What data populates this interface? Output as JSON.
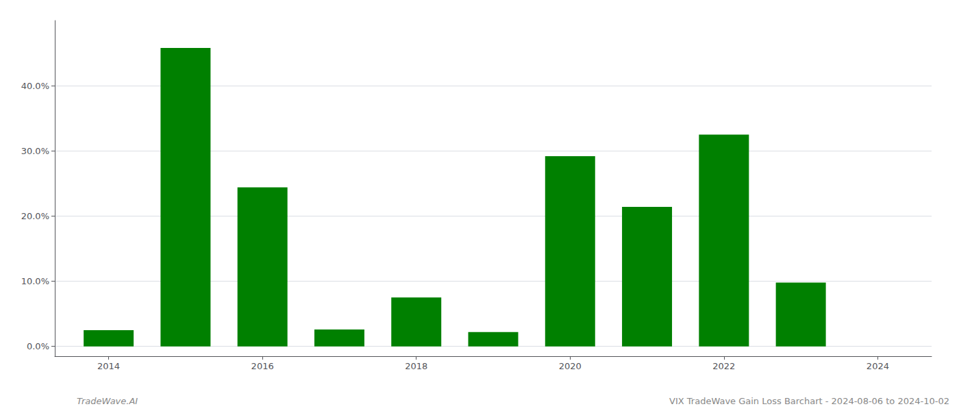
{
  "chart_data": {
    "type": "bar",
    "x": [
      2014,
      2015,
      2016,
      2017,
      2018,
      2019,
      2020,
      2021,
      2022,
      2023,
      2024
    ],
    "values": [
      0.025,
      0.458,
      0.244,
      0.026,
      0.075,
      0.022,
      0.292,
      0.214,
      0.325,
      0.098,
      0.0
    ],
    "color": "#008000",
    "xlim": [
      2013.3,
      2024.7
    ],
    "xticks": [
      2014,
      2016,
      2018,
      2020,
      2022,
      2024
    ],
    "ylim": [
      -0.015,
      0.5
    ],
    "yticks": [
      {
        "value": 0.0,
        "label": "0.0%"
      },
      {
        "value": 0.1,
        "label": "10.0%"
      },
      {
        "value": 0.2,
        "label": "20.0%"
      },
      {
        "value": 0.3,
        "label": "30.0%"
      },
      {
        "value": 0.4,
        "label": "40.0%"
      }
    ],
    "annotations": [
      "TradeWave.AI",
      "VIX TradeWave Gain Loss Barchart - 2024-08-06 to 2024-10-02"
    ],
    "grid": true
  }
}
